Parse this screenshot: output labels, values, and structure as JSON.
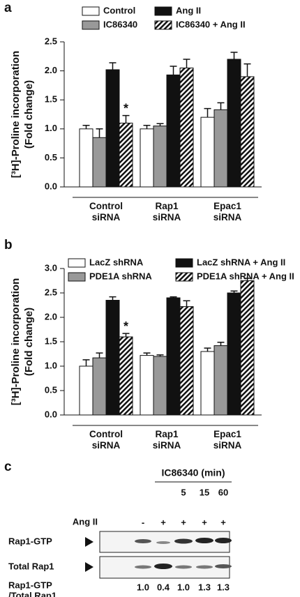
{
  "chart_data": [
    {
      "type": "bar",
      "panel": "a",
      "ylabel": "[³H]-Proline incorporation (Fold change)",
      "categories": [
        "Control siRNA",
        "Rap1 siRNA",
        "Epac1 siRNA"
      ],
      "ylim": [
        0,
        2.5
      ],
      "yticks": [
        {
          "value": 0,
          "label": "0.0"
        },
        0.5,
        {
          "value": 1,
          "label": "1.0"
        },
        1.5,
        {
          "value": 2,
          "label": "2.0"
        },
        2.5
      ],
      "series": [
        {
          "name": "Control",
          "color": "#ffffff",
          "values": [
            1.0,
            1.0,
            1.2
          ],
          "errors": [
            0.06,
            0.06,
            0.15
          ]
        },
        {
          "name": "IC86340",
          "color": "#999999",
          "values": [
            0.85,
            1.05,
            1.33
          ],
          "errors": [
            0.15,
            0.04,
            0.12
          ]
        },
        {
          "name": "Ang II",
          "color": "#111111",
          "values": [
            2.02,
            1.93,
            2.2
          ],
          "errors": [
            0.12,
            0.15,
            0.12
          ]
        },
        {
          "name": "IC86340 + Ang II",
          "color": "#111111",
          "hatch": true,
          "values": [
            1.1,
            2.05,
            1.9
          ],
          "errors": [
            0.13,
            0.15,
            0.22
          ],
          "annotations": [
            "*",
            null,
            null
          ]
        }
      ]
    },
    {
      "type": "bar",
      "panel": "b",
      "ylabel": "[³H]-Proline incorporation (Fold change)",
      "categories": [
        "Control siRNA",
        "Rap1 siRNA",
        "Epac1 siRNA"
      ],
      "ylim": [
        0,
        3.0
      ],
      "yticks": [
        {
          "value": 0,
          "label": "0.0"
        },
        0.5,
        {
          "value": 1,
          "label": "1.0"
        },
        1.5,
        {
          "value": 2,
          "label": "2.0"
        },
        2.5,
        {
          "value": 3,
          "label": "3.0"
        }
      ],
      "series": [
        {
          "name": "LacZ shRNA",
          "color": "#ffffff",
          "values": [
            1.0,
            1.22,
            1.3
          ],
          "errors": [
            0.13,
            0.05,
            0.07
          ]
        },
        {
          "name": "PDE1A shRNA",
          "color": "#999999",
          "values": [
            1.17,
            1.2,
            1.42
          ],
          "errors": [
            0.1,
            0.03,
            0.07
          ]
        },
        {
          "name": "LacZ shRNA + Ang II",
          "color": "#111111",
          "values": [
            2.35,
            2.4,
            2.5
          ],
          "errors": [
            0.07,
            0.02,
            0.04
          ]
        },
        {
          "name": "PDE1A shRNA + Ang II",
          "color": "#111111",
          "hatch": true,
          "values": [
            1.6,
            2.22,
            2.75
          ],
          "errors": [
            0.07,
            0.12,
            0.05
          ],
          "annotations": [
            "*",
            null,
            null
          ]
        }
      ]
    }
  ],
  "blot": {
    "panel": "c",
    "treatment_header": "IC86340 (min)",
    "times": [
      "5",
      "15",
      "60"
    ],
    "ang_label": "Ang II",
    "ang_signs": [
      "-",
      "+",
      "+",
      "+",
      "+"
    ],
    "rows": [
      "Rap1-GTP",
      "Total Rap1"
    ],
    "ratio_label": [
      "Rap1-GTP",
      "/Total Rap1"
    ],
    "ratios": [
      "1.0",
      "0.4",
      "1.0",
      "1.3",
      "1.3"
    ]
  }
}
